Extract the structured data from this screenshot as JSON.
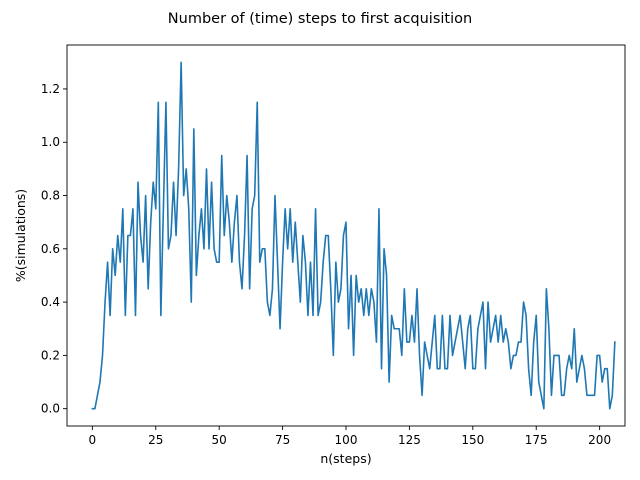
{
  "chart_data": {
    "type": "line",
    "title": "Number of (time) steps to first acquisition",
    "xlabel": "n(steps)",
    "ylabel": "%(simulations)",
    "xlim": [
      -10,
      210
    ],
    "ylim": [
      -0.065,
      1.365
    ],
    "xticks": [
      0,
      25,
      50,
      75,
      100,
      125,
      150,
      175,
      200
    ],
    "yticks": [
      0.0,
      0.2,
      0.4,
      0.6,
      0.8,
      1.0,
      1.2
    ],
    "xtick_labels": [
      "0",
      "25",
      "50",
      "75",
      "100",
      "125",
      "150",
      "175",
      "200"
    ],
    "ytick_labels": [
      "0.0",
      "0.2",
      "0.4",
      "0.6",
      "0.8",
      "1.0",
      "1.2"
    ],
    "grid": false,
    "line_color": "#1f77b4",
    "series": [
      {
        "x_start": 0,
        "x_step": 1,
        "values": [
          0,
          0,
          0.05,
          0.1,
          0.2,
          0.4,
          0.55,
          0.35,
          0.6,
          0.5,
          0.65,
          0.55,
          0.75,
          0.35,
          0.65,
          0.65,
          0.75,
          0.35,
          0.85,
          0.65,
          0.55,
          0.8,
          0.45,
          0.7,
          0.85,
          0.75,
          1.15,
          0.35,
          0.75,
          1.15,
          0.6,
          0.65,
          0.85,
          0.65,
          0.9,
          1.3,
          0.8,
          0.9,
          0.75,
          0.4,
          1.05,
          0.5,
          0.65,
          0.75,
          0.6,
          0.9,
          0.6,
          0.85,
          0.6,
          0.55,
          0.55,
          0.95,
          0.65,
          0.8,
          0.7,
          0.55,
          0.7,
          0.8,
          0.55,
          0.45,
          0.65,
          0.95,
          0.45,
          0.75,
          0.8,
          1.15,
          0.55,
          0.6,
          0.6,
          0.4,
          0.35,
          0.45,
          0.8,
          0.55,
          0.3,
          0.55,
          0.75,
          0.6,
          0.75,
          0.55,
          0.7,
          0.55,
          0.4,
          0.65,
          0.55,
          0.35,
          0.55,
          0.35,
          0.75,
          0.35,
          0.4,
          0.55,
          0.65,
          0.65,
          0.45,
          0.2,
          0.55,
          0.4,
          0.45,
          0.65,
          0.7,
          0.3,
          0.5,
          0.2,
          0.5,
          0.4,
          0.45,
          0.35,
          0.45,
          0.35,
          0.45,
          0.4,
          0.25,
          0.75,
          0.15,
          0.6,
          0.5,
          0.1,
          0.35,
          0.3,
          0.3,
          0.3,
          0.2,
          0.45,
          0.25,
          0.25,
          0.35,
          0.25,
          0.45,
          0.2,
          0.05,
          0.25,
          0.2,
          0.15,
          0.25,
          0.35,
          0.15,
          0.15,
          0.35,
          0.15,
          0.15,
          0.35,
          0.2,
          0.25,
          0.3,
          0.35,
          0.25,
          0.15,
          0.3,
          0.35,
          0.15,
          0.15,
          0.3,
          0.35,
          0.4,
          0.15,
          0.4,
          0.25,
          0.3,
          0.35,
          0.25,
          0.35,
          0.25,
          0.3,
          0.25,
          0.15,
          0.2,
          0.2,
          0.25,
          0.25,
          0.4,
          0.35,
          0.15,
          0.05,
          0.25,
          0.35,
          0.1,
          0.05,
          0,
          0.45,
          0.3,
          0.05,
          0.2,
          0.2,
          0.2,
          0.05,
          0.05,
          0.15,
          0.2,
          0.15,
          0.3,
          0.1,
          0.15,
          0.2,
          0.15,
          0.05,
          0.05,
          0.05,
          0.05,
          0.2,
          0.2,
          0.1,
          0.15,
          0.15,
          0,
          0.05,
          0.25
        ]
      }
    ]
  }
}
